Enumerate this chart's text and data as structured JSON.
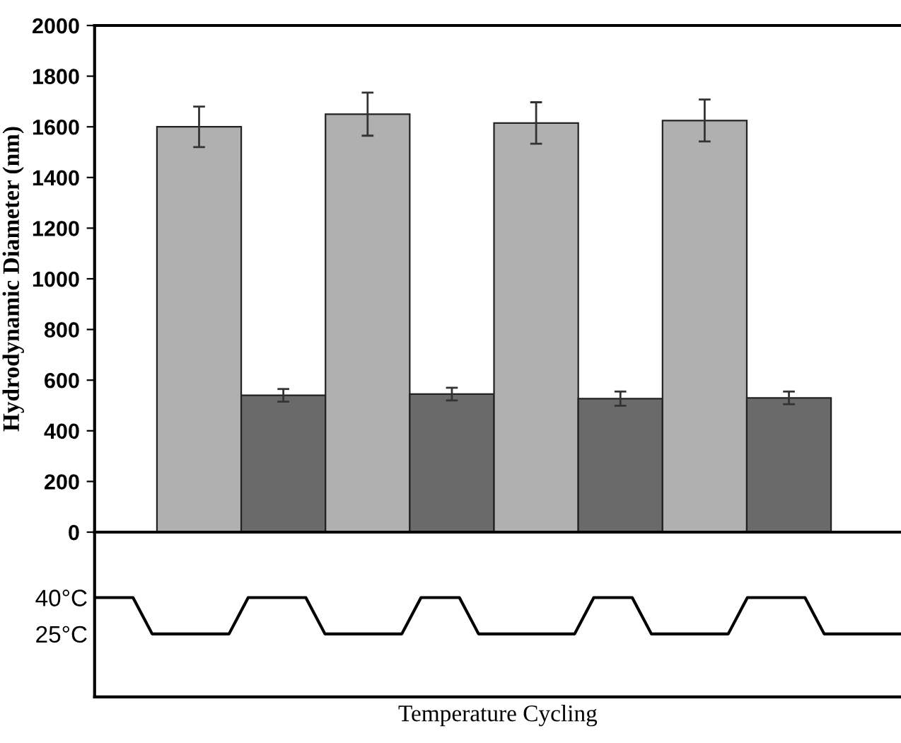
{
  "chart_data": [
    {
      "type": "bar",
      "ylabel": "Hydrodynamic Diameter (nm)",
      "categories": [
        null,
        null,
        null,
        null,
        null,
        null,
        null,
        null
      ],
      "values": [
        1600,
        540,
        1650,
        545,
        1615,
        527,
        1625,
        530
      ],
      "colors": [
        "#b0b0b0",
        "#6a6a6a",
        "#b0b0b0",
        "#6a6a6a",
        "#b0b0b0",
        "#6a6a6a",
        "#b0b0b0",
        "#6a6a6a"
      ],
      "errors": [
        80,
        25,
        85,
        25,
        82,
        28,
        83,
        25
      ],
      "ylim": [
        0,
        2000
      ],
      "yticks": [
        0,
        200,
        400,
        600,
        800,
        1000,
        1200,
        1400,
        1600,
        1800,
        2000
      ],
      "grid": false,
      "tick_labels": "y"
    },
    {
      "type": "line",
      "xlabel": "Temperature Cycling",
      "categories": [
        null,
        null,
        null,
        null,
        null,
        null,
        null,
        null,
        null,
        null,
        null,
        null,
        null,
        null,
        null,
        null,
        null,
        null,
        null,
        null,
        null,
        null,
        null,
        null,
        null,
        null,
        null,
        null,
        null,
        null,
        null,
        null,
        null,
        null,
        null,
        null,
        null,
        null,
        null,
        null,
        null,
        null,
        null
      ],
      "values": [
        40,
        40,
        40,
        25,
        25,
        25,
        25,
        25,
        40,
        40,
        40,
        40,
        25,
        25,
        25,
        25,
        25,
        40,
        40,
        40,
        25,
        25,
        25,
        25,
        25,
        25,
        40,
        40,
        40,
        25,
        25,
        25,
        25,
        25,
        40,
        40,
        40,
        40,
        25,
        25,
        25,
        25,
        25
      ],
      "color": "#000000",
      "marker": "none",
      "line_style": "solid",
      "ylim": [
        -1,
        67
      ],
      "yticks": [
        {
          "value": 40,
          "label": "40°C"
        },
        {
          "value": 25,
          "label": "25°C"
        }
      ],
      "grid": false,
      "tick_labels": "y"
    }
  ]
}
